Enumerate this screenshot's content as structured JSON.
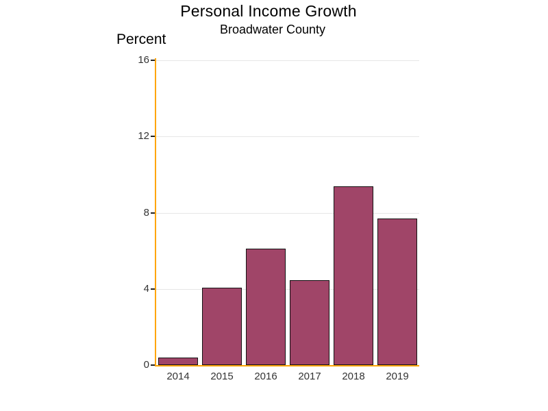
{
  "chart_data": {
    "type": "bar",
    "title": "Personal Income Growth",
    "subtitle": "Broadwater County",
    "ylabel": "Percent",
    "xlabel": "",
    "categories": [
      "2014",
      "2015",
      "2016",
      "2017",
      "2018",
      "2019"
    ],
    "values": [
      0.4,
      4.05,
      6.1,
      4.45,
      9.4,
      7.7
    ],
    "ylim": [
      0,
      16
    ],
    "yticks": [
      0,
      4,
      8,
      12,
      16
    ],
    "grid": true,
    "legend_position": "none",
    "colors": {
      "bar_fill": "#A04568",
      "bar_border": "#121212",
      "axis_line": "#FFA500",
      "gridline": "#E6E6E6",
      "title_text": "#000000",
      "tick_text": "#333333",
      "background": "#FFFFFF"
    }
  }
}
